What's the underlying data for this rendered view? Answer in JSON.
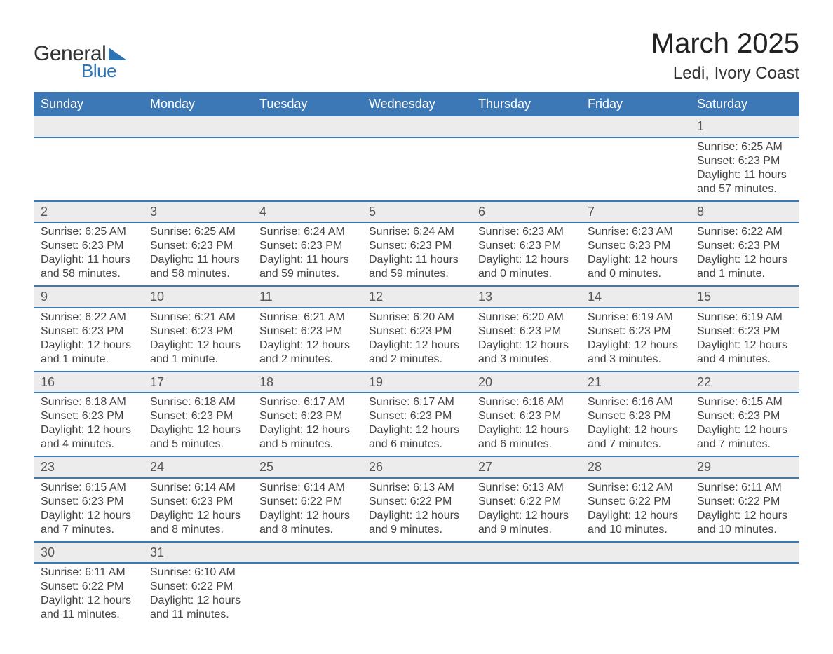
{
  "logo": {
    "text_top": "General",
    "text_bottom": "Blue",
    "triangle_color": "#2d74b5"
  },
  "title": "March 2025",
  "location": "Ledi, Ivory Coast",
  "colors": {
    "header_bg": "#3b78b5",
    "header_text": "#ffffff",
    "daynum_bg": "#ececec",
    "row_border": "#3b78b5",
    "body_text": "#444444",
    "background": "#ffffff"
  },
  "weekdays": [
    "Sunday",
    "Monday",
    "Tuesday",
    "Wednesday",
    "Thursday",
    "Friday",
    "Saturday"
  ],
  "weeks": [
    [
      null,
      null,
      null,
      null,
      null,
      null,
      {
        "n": "1",
        "sunrise": "Sunrise: 6:25 AM",
        "sunset": "Sunset: 6:23 PM",
        "day1": "Daylight: 11 hours",
        "day2": "and 57 minutes."
      }
    ],
    [
      {
        "n": "2",
        "sunrise": "Sunrise: 6:25 AM",
        "sunset": "Sunset: 6:23 PM",
        "day1": "Daylight: 11 hours",
        "day2": "and 58 minutes."
      },
      {
        "n": "3",
        "sunrise": "Sunrise: 6:25 AM",
        "sunset": "Sunset: 6:23 PM",
        "day1": "Daylight: 11 hours",
        "day2": "and 58 minutes."
      },
      {
        "n": "4",
        "sunrise": "Sunrise: 6:24 AM",
        "sunset": "Sunset: 6:23 PM",
        "day1": "Daylight: 11 hours",
        "day2": "and 59 minutes."
      },
      {
        "n": "5",
        "sunrise": "Sunrise: 6:24 AM",
        "sunset": "Sunset: 6:23 PM",
        "day1": "Daylight: 11 hours",
        "day2": "and 59 minutes."
      },
      {
        "n": "6",
        "sunrise": "Sunrise: 6:23 AM",
        "sunset": "Sunset: 6:23 PM",
        "day1": "Daylight: 12 hours",
        "day2": "and 0 minutes."
      },
      {
        "n": "7",
        "sunrise": "Sunrise: 6:23 AM",
        "sunset": "Sunset: 6:23 PM",
        "day1": "Daylight: 12 hours",
        "day2": "and 0 minutes."
      },
      {
        "n": "8",
        "sunrise": "Sunrise: 6:22 AM",
        "sunset": "Sunset: 6:23 PM",
        "day1": "Daylight: 12 hours",
        "day2": "and 1 minute."
      }
    ],
    [
      {
        "n": "9",
        "sunrise": "Sunrise: 6:22 AM",
        "sunset": "Sunset: 6:23 PM",
        "day1": "Daylight: 12 hours",
        "day2": "and 1 minute."
      },
      {
        "n": "10",
        "sunrise": "Sunrise: 6:21 AM",
        "sunset": "Sunset: 6:23 PM",
        "day1": "Daylight: 12 hours",
        "day2": "and 1 minute."
      },
      {
        "n": "11",
        "sunrise": "Sunrise: 6:21 AM",
        "sunset": "Sunset: 6:23 PM",
        "day1": "Daylight: 12 hours",
        "day2": "and 2 minutes."
      },
      {
        "n": "12",
        "sunrise": "Sunrise: 6:20 AM",
        "sunset": "Sunset: 6:23 PM",
        "day1": "Daylight: 12 hours",
        "day2": "and 2 minutes."
      },
      {
        "n": "13",
        "sunrise": "Sunrise: 6:20 AM",
        "sunset": "Sunset: 6:23 PM",
        "day1": "Daylight: 12 hours",
        "day2": "and 3 minutes."
      },
      {
        "n": "14",
        "sunrise": "Sunrise: 6:19 AM",
        "sunset": "Sunset: 6:23 PM",
        "day1": "Daylight: 12 hours",
        "day2": "and 3 minutes."
      },
      {
        "n": "15",
        "sunrise": "Sunrise: 6:19 AM",
        "sunset": "Sunset: 6:23 PM",
        "day1": "Daylight: 12 hours",
        "day2": "and 4 minutes."
      }
    ],
    [
      {
        "n": "16",
        "sunrise": "Sunrise: 6:18 AM",
        "sunset": "Sunset: 6:23 PM",
        "day1": "Daylight: 12 hours",
        "day2": "and 4 minutes."
      },
      {
        "n": "17",
        "sunrise": "Sunrise: 6:18 AM",
        "sunset": "Sunset: 6:23 PM",
        "day1": "Daylight: 12 hours",
        "day2": "and 5 minutes."
      },
      {
        "n": "18",
        "sunrise": "Sunrise: 6:17 AM",
        "sunset": "Sunset: 6:23 PM",
        "day1": "Daylight: 12 hours",
        "day2": "and 5 minutes."
      },
      {
        "n": "19",
        "sunrise": "Sunrise: 6:17 AM",
        "sunset": "Sunset: 6:23 PM",
        "day1": "Daylight: 12 hours",
        "day2": "and 6 minutes."
      },
      {
        "n": "20",
        "sunrise": "Sunrise: 6:16 AM",
        "sunset": "Sunset: 6:23 PM",
        "day1": "Daylight: 12 hours",
        "day2": "and 6 minutes."
      },
      {
        "n": "21",
        "sunrise": "Sunrise: 6:16 AM",
        "sunset": "Sunset: 6:23 PM",
        "day1": "Daylight: 12 hours",
        "day2": "and 7 minutes."
      },
      {
        "n": "22",
        "sunrise": "Sunrise: 6:15 AM",
        "sunset": "Sunset: 6:23 PM",
        "day1": "Daylight: 12 hours",
        "day2": "and 7 minutes."
      }
    ],
    [
      {
        "n": "23",
        "sunrise": "Sunrise: 6:15 AM",
        "sunset": "Sunset: 6:23 PM",
        "day1": "Daylight: 12 hours",
        "day2": "and 7 minutes."
      },
      {
        "n": "24",
        "sunrise": "Sunrise: 6:14 AM",
        "sunset": "Sunset: 6:23 PM",
        "day1": "Daylight: 12 hours",
        "day2": "and 8 minutes."
      },
      {
        "n": "25",
        "sunrise": "Sunrise: 6:14 AM",
        "sunset": "Sunset: 6:22 PM",
        "day1": "Daylight: 12 hours",
        "day2": "and 8 minutes."
      },
      {
        "n": "26",
        "sunrise": "Sunrise: 6:13 AM",
        "sunset": "Sunset: 6:22 PM",
        "day1": "Daylight: 12 hours",
        "day2": "and 9 minutes."
      },
      {
        "n": "27",
        "sunrise": "Sunrise: 6:13 AM",
        "sunset": "Sunset: 6:22 PM",
        "day1": "Daylight: 12 hours",
        "day2": "and 9 minutes."
      },
      {
        "n": "28",
        "sunrise": "Sunrise: 6:12 AM",
        "sunset": "Sunset: 6:22 PM",
        "day1": "Daylight: 12 hours",
        "day2": "and 10 minutes."
      },
      {
        "n": "29",
        "sunrise": "Sunrise: 6:11 AM",
        "sunset": "Sunset: 6:22 PM",
        "day1": "Daylight: 12 hours",
        "day2": "and 10 minutes."
      }
    ],
    [
      {
        "n": "30",
        "sunrise": "Sunrise: 6:11 AM",
        "sunset": "Sunset: 6:22 PM",
        "day1": "Daylight: 12 hours",
        "day2": "and 11 minutes."
      },
      {
        "n": "31",
        "sunrise": "Sunrise: 6:10 AM",
        "sunset": "Sunset: 6:22 PM",
        "day1": "Daylight: 12 hours",
        "day2": "and 11 minutes."
      },
      null,
      null,
      null,
      null,
      null
    ]
  ]
}
